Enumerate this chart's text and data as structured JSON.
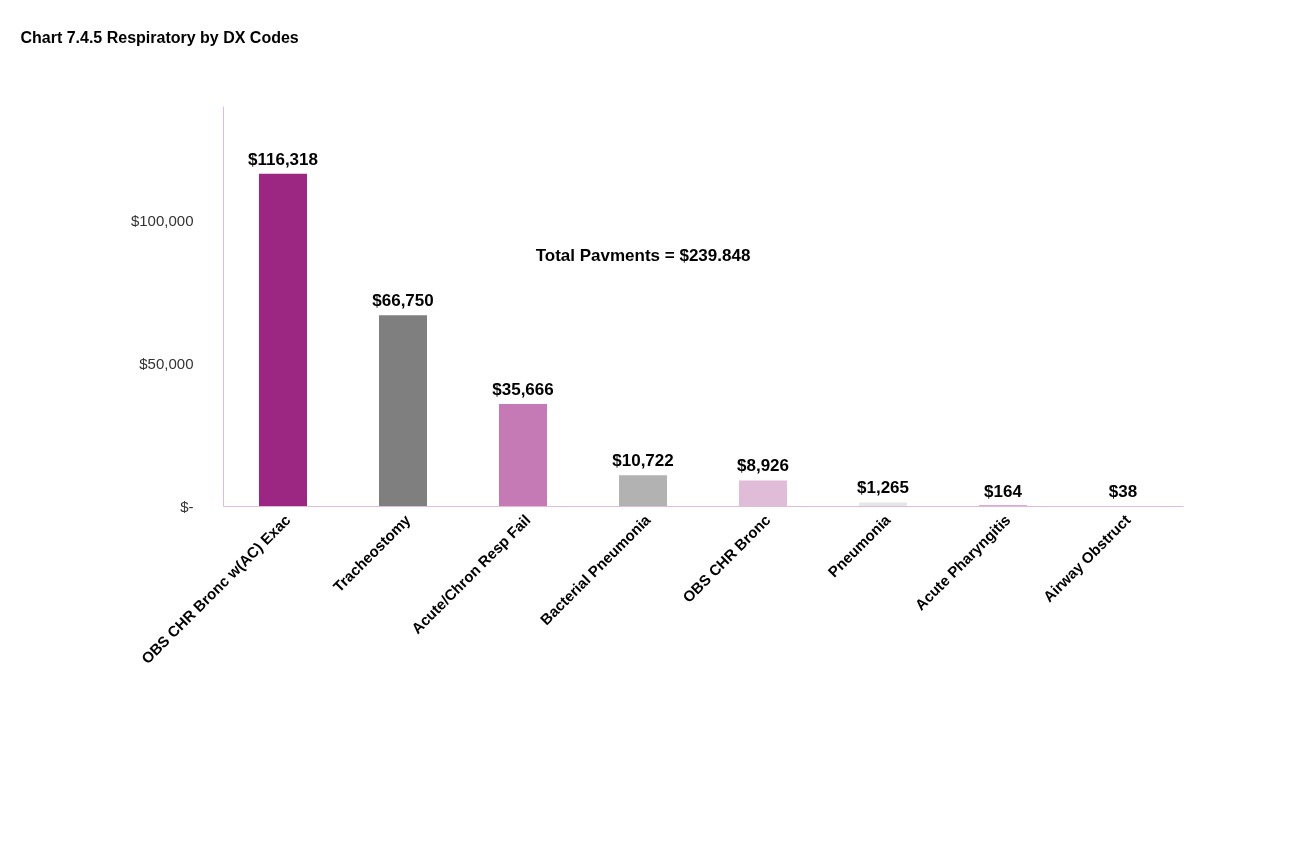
{
  "chart_data": {
    "type": "bar",
    "title": "Chart 7.4.5  Respiratory by DX Codes",
    "categories": [
      "OBS CHR Bronc w(AC) Exac",
      "Tracheostomy",
      "Acute/Chron Resp Fail",
      "Bacterial Pneumonia",
      "OBS CHR Bronc",
      "Pneumonia",
      "Acute Pharyngitis",
      "Airway Obstruct"
    ],
    "values": [
      116318,
      66750,
      35666,
      10722,
      8926,
      1265,
      164,
      38
    ],
    "colors": [
      "#9c2782",
      "#7f7f7f",
      "#c57ab5",
      "#b2b2b2",
      "#e0bcd8",
      "#e6e6e6",
      "#c054b0",
      "#c054b0"
    ],
    "value_labels": [
      "$116,318",
      "$66,750",
      "$35,666",
      "$10,722",
      "$8,926",
      "$1,265",
      "$164",
      "$38"
    ],
    "ylim": [
      0,
      140000
    ],
    "yticks": [
      {
        "value": 0,
        "label": "$-"
      },
      {
        "value": 50000,
        "label": "$50,000"
      },
      {
        "value": 100000,
        "label": "$100,000"
      }
    ],
    "annotations": [
      "Total Pavments = $239.848"
    ],
    "grid": false
  }
}
